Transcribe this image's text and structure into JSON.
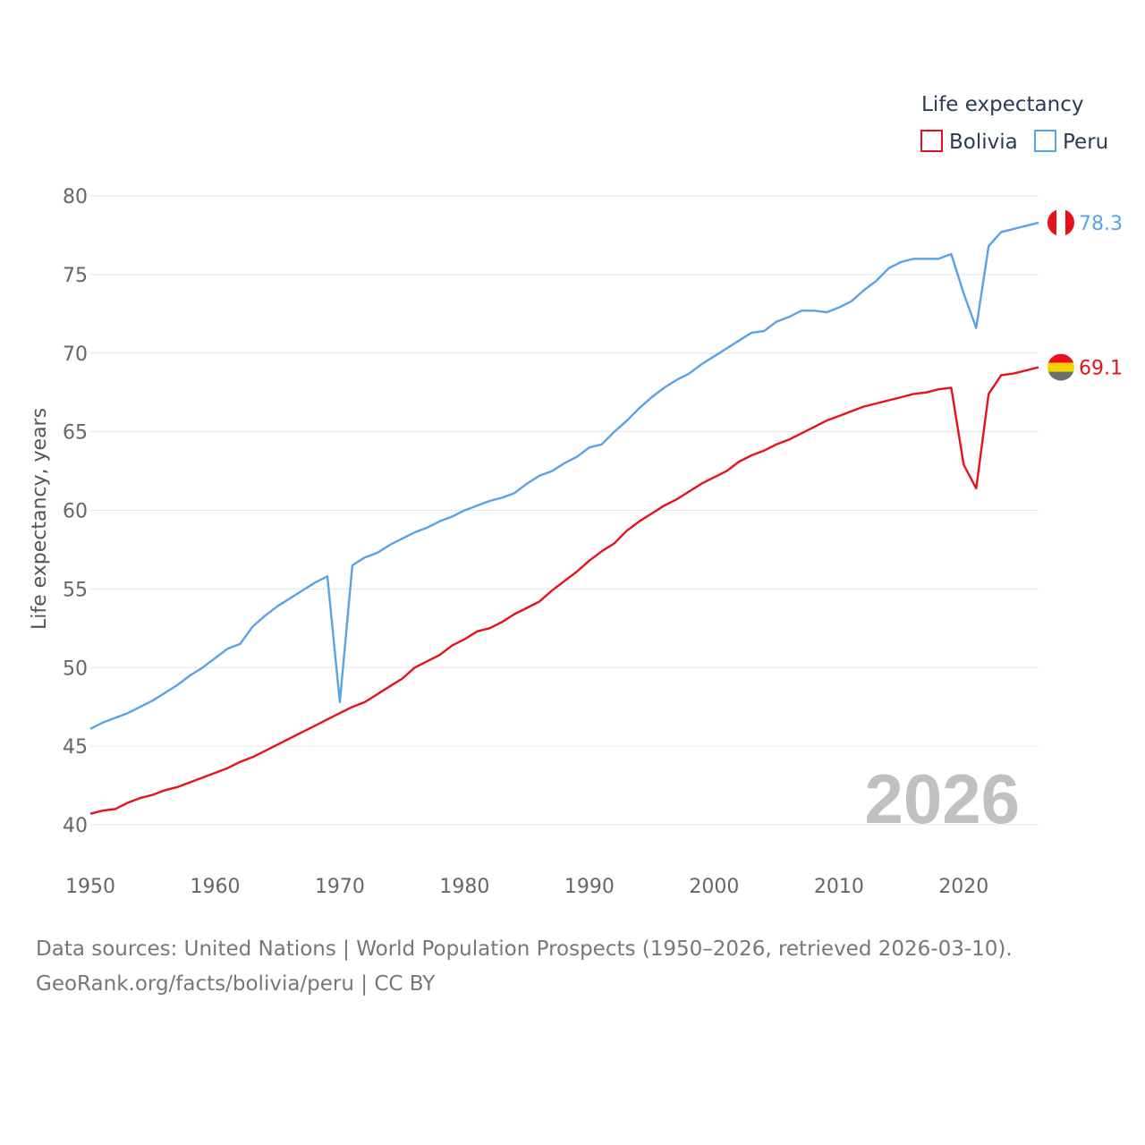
{
  "chart_data": {
    "type": "line",
    "ylabel": "Life expectancy, years",
    "xlabel": "",
    "xlim": [
      1950,
      2026
    ],
    "ylim": [
      40,
      80
    ],
    "x_ticks": [
      1950,
      1960,
      1970,
      1980,
      1990,
      2000,
      2010,
      2020
    ],
    "y_ticks": [
      40,
      45,
      50,
      55,
      60,
      65,
      70,
      75,
      80
    ],
    "grid": true,
    "legend_title": "Life expectancy",
    "legend_position": "top-right",
    "year_label": "2026",
    "x": [
      1950,
      1951,
      1952,
      1953,
      1954,
      1955,
      1956,
      1957,
      1958,
      1959,
      1960,
      1961,
      1962,
      1963,
      1964,
      1965,
      1966,
      1967,
      1968,
      1969,
      1970,
      1971,
      1972,
      1973,
      1974,
      1975,
      1976,
      1977,
      1978,
      1979,
      1980,
      1981,
      1982,
      1983,
      1984,
      1985,
      1986,
      1987,
      1988,
      1989,
      1990,
      1991,
      1992,
      1993,
      1994,
      1995,
      1996,
      1997,
      1998,
      1999,
      2000,
      2001,
      2002,
      2003,
      2004,
      2005,
      2006,
      2007,
      2008,
      2009,
      2010,
      2011,
      2012,
      2013,
      2014,
      2015,
      2016,
      2017,
      2018,
      2019,
      2020,
      2021,
      2022,
      2023,
      2024,
      2025,
      2026
    ],
    "series": [
      {
        "name": "Bolivia",
        "color": "#e8101a",
        "end_label": "69.1",
        "flag": "bolivia-flag-icon",
        "values": [
          40.7,
          40.9,
          41.0,
          41.4,
          41.7,
          41.9,
          42.2,
          42.4,
          42.7,
          43.0,
          43.3,
          43.6,
          44.0,
          44.3,
          44.7,
          45.1,
          45.5,
          45.9,
          46.3,
          46.7,
          47.1,
          47.5,
          47.8,
          48.3,
          48.8,
          49.3,
          50.0,
          50.4,
          50.8,
          51.4,
          51.8,
          52.3,
          52.5,
          52.9,
          53.4,
          53.8,
          54.2,
          54.9,
          55.5,
          56.1,
          56.8,
          57.4,
          57.9,
          58.7,
          59.3,
          59.8,
          60.3,
          60.7,
          61.2,
          61.7,
          62.1,
          62.5,
          63.1,
          63.5,
          63.8,
          64.2,
          64.5,
          64.9,
          65.3,
          65.7,
          66.0,
          66.3,
          66.6,
          66.8,
          67.0,
          67.2,
          67.4,
          67.5,
          67.7,
          67.8,
          62.9,
          61.4,
          67.4,
          68.6,
          68.7,
          68.9,
          69.1
        ]
      },
      {
        "name": "Peru",
        "color": "#5aa2e6",
        "end_label": "78.3",
        "flag": "peru-flag-icon",
        "values": [
          46.1,
          46.5,
          46.8,
          47.1,
          47.5,
          47.9,
          48.4,
          48.9,
          49.5,
          50.0,
          50.6,
          51.2,
          51.5,
          52.6,
          53.3,
          53.9,
          54.4,
          54.9,
          55.4,
          55.8,
          47.8,
          56.5,
          57.0,
          57.3,
          57.8,
          58.2,
          58.6,
          58.9,
          59.3,
          59.6,
          60.0,
          60.3,
          60.6,
          60.8,
          61.1,
          61.7,
          62.2,
          62.5,
          63.0,
          63.4,
          64.0,
          64.2,
          65.0,
          65.7,
          66.5,
          67.2,
          67.8,
          68.3,
          68.7,
          69.3,
          69.8,
          70.3,
          70.8,
          71.3,
          71.4,
          72.0,
          72.3,
          72.7,
          72.7,
          72.6,
          72.9,
          73.3,
          74.0,
          74.6,
          75.4,
          75.8,
          76.0,
          76.0,
          76.0,
          76.3,
          73.8,
          71.6,
          76.8,
          77.7,
          77.9,
          78.1,
          78.3
        ]
      }
    ]
  },
  "source": {
    "line1": "Data sources: United Nations | World Population Prospects (1950–2026, retrieved 2026-03-10).",
    "line2": "GeoRank.org/facts/bolivia/peru | CC BY"
  }
}
